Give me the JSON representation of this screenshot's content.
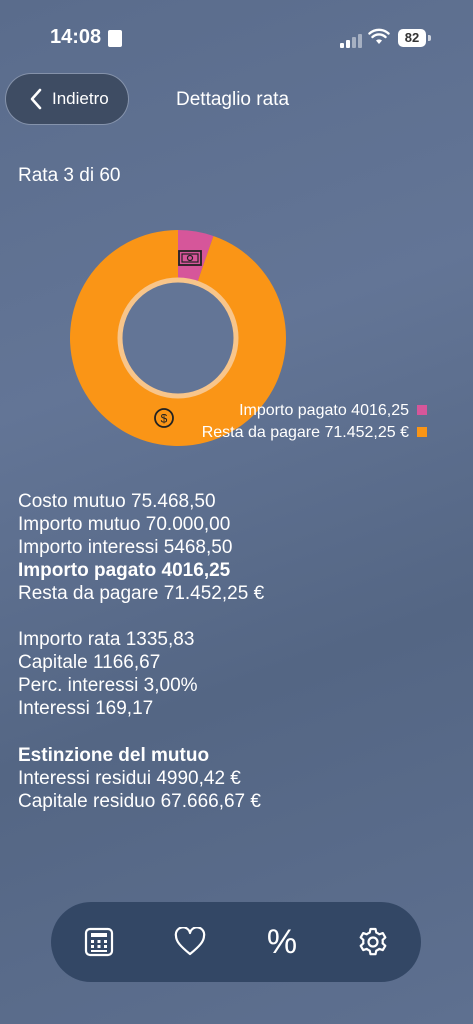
{
  "status_bar": {
    "time": "14:08",
    "battery": "82"
  },
  "header": {
    "back_label": "Indietro",
    "title": "Dettaglio rata"
  },
  "installment": {
    "label": "Rata 3 di 60"
  },
  "chart_data": {
    "type": "pie",
    "categories": [
      "Importo pagato",
      "Resta da pagare"
    ],
    "values": [
      4016.25,
      71452.25
    ],
    "colors": [
      "#d6569a",
      "#fa9516"
    ],
    "legend": [
      "Importo pagato 4016,25",
      "Resta da pagare 71.452,25 €"
    ],
    "legend_placement": "bottom-right"
  },
  "summary": {
    "costo_mutuo": "Costo mutuo 75.468,50",
    "importo_mutuo": "Importo mutuo 70.000,00",
    "importo_interessi": "Importo interessi 5468,50",
    "importo_pagato": "Importo pagato 4016,25",
    "resta_da_pagare": "Resta da pagare 71.452,25 €"
  },
  "rata_details": {
    "importo_rata": "Importo rata 1335,83",
    "capitale": "Capitale 1166,67",
    "perc_interessi": "Perc. interessi 3,00%",
    "interessi": "Interessi 169,17"
  },
  "estinzione": {
    "heading": "Estinzione del mutuo",
    "interessi_residui": "Interessi residui 4990,42 €",
    "capitale_residuo": "Capitale residuo 67.666,67 €"
  },
  "tabbar": {
    "percent_glyph": "%"
  }
}
